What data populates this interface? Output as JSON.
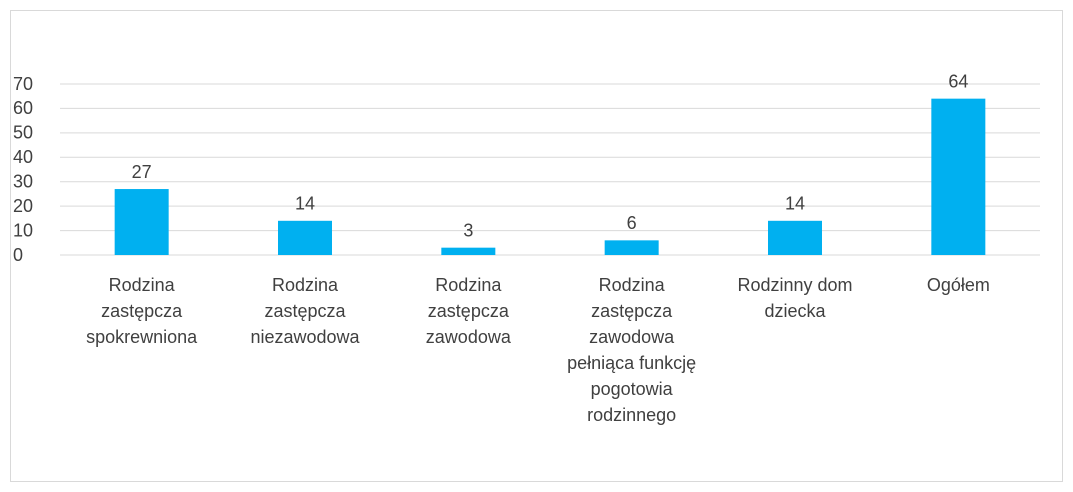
{
  "chart_data": {
    "type": "bar",
    "categories": [
      "Rodzina zastępcza spokrewniona",
      "Rodzina zastępcza niezawodowa",
      "Rodzina zastępcza zawodowa",
      "Rodzina zastępcza zawodowa pełniąca funkcję pogotowia rodzinnego",
      "Rodzinny dom dziecka",
      "Ogółem"
    ],
    "values": [
      27,
      14,
      3,
      6,
      14,
      64
    ],
    "color": "#00b0f0",
    "ylim": [
      0,
      70
    ],
    "yticks": [
      0,
      10,
      20,
      30,
      40,
      50,
      60,
      70
    ],
    "grid": true
  }
}
